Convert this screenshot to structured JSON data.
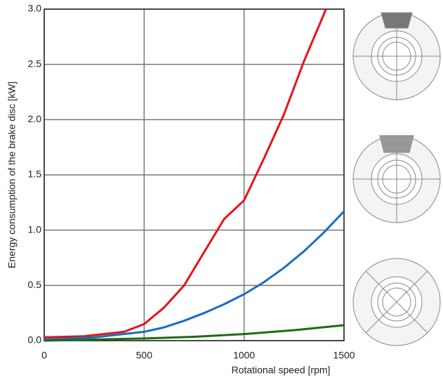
{
  "chart_data": {
    "type": "line",
    "xlabel": "Rotational speed [rpm]",
    "ylabel": "Energy consumption of the brake disc [kW]",
    "xlim": [
      0,
      1500
    ],
    "xticks": [
      0,
      500,
      1000,
      1500
    ],
    "ylim": [
      0,
      3.0
    ],
    "yticks": [
      {
        "value": 0,
        "label": "0.0"
      },
      0.5,
      {
        "value": 1,
        "label": "1.0"
      },
      1.5,
      {
        "value": 2,
        "label": "2.0"
      },
      2.5,
      {
        "value": 3,
        "label": "3.0"
      }
    ],
    "grid": true,
    "series": [
      {
        "color": "#e8111b",
        "x": [
          0,
          200,
          400,
          500,
          600,
          700,
          800,
          900,
          1000,
          1100,
          1200,
          1300,
          1410
        ],
        "values": [
          0.03,
          0.04,
          0.08,
          0.15,
          0.3,
          0.5,
          0.8,
          1.1,
          1.27,
          1.65,
          2.05,
          2.53,
          3.0
        ]
      },
      {
        "color": "#1570bd",
        "x": [
          0,
          250,
          500,
          600,
          700,
          800,
          900,
          1000,
          1100,
          1200,
          1300,
          1400,
          1500
        ],
        "values": [
          0.01,
          0.03,
          0.08,
          0.12,
          0.18,
          0.25,
          0.33,
          0.42,
          0.53,
          0.66,
          0.81,
          0.98,
          1.17
        ]
      },
      {
        "color": "#1e6a14",
        "x": [
          0,
          250,
          500,
          750,
          1000,
          1250,
          1500
        ],
        "values": [
          0.0,
          0.01,
          0.02,
          0.035,
          0.06,
          0.095,
          0.14
        ]
      }
    ]
  }
}
